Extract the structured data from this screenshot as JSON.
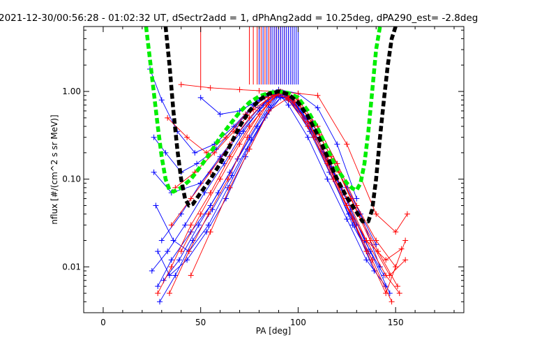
{
  "chart_data": {
    "type": "scatter",
    "title": "2021-12-30/00:56:28 - 01:02:32 UT, dSectr2add = 1, dPhAng2add = 10.25deg, dPA290_est=  -2.8deg",
    "xlabel": "PA [deg]",
    "ylabel": "nflux [#/(cm^2 s sr MeV)]",
    "xlim": [
      -10,
      185
    ],
    "ylim": [
      0.003,
      5.5
    ],
    "yscale": "log",
    "xticks": [
      0,
      50,
      100,
      150
    ],
    "xtick_labels": [
      "0",
      "50",
      "100",
      "150"
    ],
    "yticks": [
      0.01,
      0.1,
      1
    ],
    "ytick_labels": [
      "0.01",
      "0.10",
      "1.00"
    ],
    "grid": false,
    "legend": "none",
    "colors": {
      "red": "#ff0000",
      "blue": "#0000ff",
      "black": "#000000",
      "green": "#00ee00"
    },
    "series": [
      {
        "color": "green",
        "style": "thick-dashed",
        "x": [
          22,
          25,
          28,
          30,
          32,
          34,
          36,
          40,
          45,
          50,
          55,
          60,
          65,
          70,
          75,
          80,
          85,
          90,
          95,
          100,
          105,
          110,
          115,
          120,
          125,
          128,
          130,
          132,
          134,
          136,
          138,
          140,
          142
        ],
        "y": [
          5.5,
          1.5,
          0.4,
          0.18,
          0.1,
          0.075,
          0.072,
          0.08,
          0.1,
          0.14,
          0.2,
          0.3,
          0.42,
          0.58,
          0.75,
          0.88,
          0.96,
          1.0,
          0.96,
          0.85,
          0.6,
          0.38,
          0.22,
          0.13,
          0.09,
          0.078,
          0.075,
          0.09,
          0.15,
          0.35,
          1.0,
          3.0,
          5.5
        ]
      },
      {
        "color": "black",
        "style": "thick-dashed",
        "x": [
          32,
          34,
          36,
          38,
          40,
          42,
          44,
          46,
          50,
          55,
          60,
          65,
          70,
          75,
          80,
          85,
          90,
          95,
          100,
          105,
          110,
          115,
          120,
          125,
          130,
          133,
          136,
          138,
          140,
          142,
          144,
          146,
          148,
          150
        ],
        "y": [
          5.5,
          2.0,
          0.6,
          0.22,
          0.1,
          0.06,
          0.05,
          0.052,
          0.07,
          0.1,
          0.15,
          0.24,
          0.4,
          0.6,
          0.8,
          0.94,
          1.0,
          0.93,
          0.75,
          0.52,
          0.32,
          0.18,
          0.1,
          0.062,
          0.042,
          0.033,
          0.033,
          0.045,
          0.1,
          0.3,
          0.8,
          2.0,
          4.0,
          5.5
        ]
      },
      {
        "color": "blue",
        "style": "line-plus",
        "x": [
          28,
          35,
          45,
          55,
          65,
          75,
          85,
          90,
          95,
          105,
          115,
          125,
          135,
          145
        ],
        "y": [
          0.006,
          0.012,
          0.025,
          0.05,
          0.12,
          0.3,
          0.7,
          0.95,
          0.7,
          0.3,
          0.1,
          0.035,
          0.012,
          0.006
        ]
      },
      {
        "color": "blue",
        "style": "line-plus",
        "x": [
          30,
          40,
          50,
          60,
          70,
          80,
          88,
          95,
          105,
          115,
          125,
          130
        ],
        "y": [
          0.02,
          0.04,
          0.09,
          0.18,
          0.35,
          0.65,
          0.95,
          0.8,
          0.4,
          0.15,
          0.05,
          0.03
        ]
      },
      {
        "color": "blue",
        "style": "line-plus",
        "x": [
          25,
          33,
          42,
          52,
          62,
          72,
          82,
          90,
          98,
          108,
          118,
          128,
          138
        ],
        "y": [
          0.009,
          0.015,
          0.03,
          0.07,
          0.15,
          0.35,
          0.7,
          1.0,
          0.75,
          0.3,
          0.1,
          0.03,
          0.012
        ]
      },
      {
        "color": "blue",
        "style": "line-plus",
        "x": [
          26,
          32,
          40,
          48,
          58,
          68,
          78,
          86,
          92,
          100,
          110,
          120,
          132,
          142
        ],
        "y": [
          0.3,
          0.2,
          0.12,
          0.15,
          0.22,
          0.4,
          0.7,
          0.92,
          0.98,
          0.7,
          0.4,
          0.15,
          0.04,
          0.01
        ]
      },
      {
        "color": "blue",
        "style": "line-plus",
        "x": [
          27,
          36,
          44,
          54,
          64,
          74,
          84,
          90,
          96,
          106,
          116,
          126,
          136
        ],
        "y": [
          0.05,
          0.02,
          0.015,
          0.03,
          0.08,
          0.22,
          0.55,
          0.9,
          0.8,
          0.35,
          0.12,
          0.04,
          0.015
        ]
      },
      {
        "color": "blue",
        "style": "line-plus",
        "x": [
          29,
          37,
          46,
          56,
          66,
          76,
          86,
          93,
          102,
          112,
          122,
          134,
          144
        ],
        "y": [
          0.004,
          0.008,
          0.02,
          0.045,
          0.11,
          0.28,
          0.65,
          0.95,
          0.6,
          0.22,
          0.08,
          0.02,
          0.008
        ]
      },
      {
        "color": "blue",
        "style": "line-plus",
        "x": [
          24,
          30,
          38,
          47,
          57,
          67,
          77,
          87,
          93,
          103,
          113,
          123
        ],
        "y": [
          1.8,
          0.8,
          0.35,
          0.2,
          0.25,
          0.4,
          0.7,
          0.98,
          0.9,
          0.5,
          0.2,
          0.07
        ]
      },
      {
        "color": "blue",
        "style": "line-plus",
        "x": [
          28,
          34,
          43,
          53,
          63,
          73,
          83,
          91,
          99,
          109,
          119,
          129,
          139
        ],
        "y": [
          0.015,
          0.008,
          0.012,
          0.025,
          0.06,
          0.18,
          0.5,
          0.85,
          0.7,
          0.3,
          0.1,
          0.03,
          0.009
        ]
      },
      {
        "color": "blue",
        "style": "line-plus",
        "x": [
          31,
          39,
          49,
          59,
          69,
          79,
          89,
          97,
          107,
          117,
          127,
          137,
          147
        ],
        "y": [
          0.007,
          0.012,
          0.03,
          0.07,
          0.17,
          0.4,
          0.88,
          0.8,
          0.4,
          0.14,
          0.045,
          0.015,
          0.005
        ]
      },
      {
        "color": "blue",
        "style": "line-plus",
        "x": [
          26,
          35,
          50,
          60,
          70,
          80,
          88,
          95,
          110,
          125,
          140
        ],
        "y": [
          0.12,
          0.07,
          0.09,
          0.17,
          0.33,
          0.6,
          0.92,
          0.85,
          0.35,
          0.08,
          0.018
        ]
      },
      {
        "color": "blue",
        "style": "line-plus",
        "x": [
          50,
          60,
          70,
          80,
          90,
          100,
          110,
          120,
          130
        ],
        "y": [
          0.85,
          0.55,
          0.6,
          0.8,
          1.05,
          0.95,
          0.65,
          0.25,
          0.06
        ]
      },
      {
        "color": "red",
        "style": "line-plus",
        "x": [
          28,
          35,
          45,
          55,
          65,
          75,
          85,
          90,
          95,
          105,
          115,
          125,
          135,
          145,
          152
        ],
        "y": [
          0.005,
          0.01,
          0.03,
          0.07,
          0.18,
          0.4,
          0.75,
          0.95,
          0.8,
          0.4,
          0.15,
          0.05,
          0.02,
          0.008,
          0.005
        ]
      },
      {
        "color": "red",
        "style": "line-plus",
        "x": [
          35,
          45,
          55,
          65,
          75,
          85,
          92,
          100,
          110,
          120,
          130,
          140,
          150
        ],
        "y": [
          0.03,
          0.06,
          0.12,
          0.25,
          0.5,
          0.85,
          0.98,
          0.8,
          0.4,
          0.15,
          0.05,
          0.02,
          0.01
        ]
      },
      {
        "color": "red",
        "style": "line-plus",
        "x": [
          33,
          43,
          53,
          63,
          73,
          83,
          90,
          97,
          107,
          117,
          127,
          137,
          147,
          155
        ],
        "y": [
          0.5,
          0.3,
          0.2,
          0.3,
          0.55,
          0.85,
          1.0,
          0.85,
          0.45,
          0.18,
          0.06,
          0.02,
          0.008,
          0.012
        ]
      },
      {
        "color": "red",
        "style": "line-plus",
        "x": [
          40,
          50,
          60,
          70,
          80,
          88,
          95,
          105,
          115,
          125,
          135,
          145,
          153
        ],
        "y": [
          0.015,
          0.04,
          0.1,
          0.25,
          0.55,
          0.9,
          0.85,
          0.45,
          0.18,
          0.06,
          0.02,
          0.012,
          0.016
        ]
      },
      {
        "color": "red",
        "style": "line-plus",
        "x": [
          37,
          47,
          57,
          67,
          77,
          87,
          93,
          101,
          111,
          121,
          131,
          141,
          151
        ],
        "y": [
          0.08,
          0.12,
          0.2,
          0.35,
          0.62,
          0.9,
          0.95,
          0.7,
          0.32,
          0.12,
          0.04,
          0.015,
          0.006
        ]
      },
      {
        "color": "red",
        "style": "line-plus",
        "x": [
          40,
          55,
          70,
          80,
          90,
          100,
          110,
          125,
          140,
          150,
          156
        ],
        "y": [
          1.2,
          1.1,
          1.05,
          1.02,
          1.0,
          0.95,
          0.9,
          0.25,
          0.04,
          0.025,
          0.04
        ]
      },
      {
        "color": "red",
        "style": "line-plus",
        "x": [
          45,
          55,
          65,
          75,
          85,
          95,
          105,
          115,
          125,
          135,
          145,
          155
        ],
        "y": [
          0.008,
          0.025,
          0.08,
          0.22,
          0.6,
          0.85,
          0.45,
          0.16,
          0.05,
          0.015,
          0.005,
          0.02
        ]
      },
      {
        "color": "red",
        "style": "line-plus",
        "x": [
          34,
          44,
          54,
          64,
          74,
          84,
          91,
          98,
          108,
          118,
          128,
          138,
          148
        ],
        "y": [
          0.005,
          0.015,
          0.04,
          0.1,
          0.3,
          0.7,
          1.0,
          0.75,
          0.3,
          0.1,
          0.035,
          0.012,
          0.004
        ]
      }
    ],
    "spikes": [
      {
        "color": "red",
        "x": [
          50,
          75,
          77,
          79,
          81,
          83,
          85,
          86,
          88,
          89,
          91,
          93,
          95,
          97
        ]
      },
      {
        "color": "blue",
        "x": [
          80,
          82,
          84,
          86,
          87,
          88,
          89,
          90,
          91,
          92,
          93,
          94,
          95,
          96,
          97,
          98,
          99,
          100
        ]
      }
    ]
  }
}
